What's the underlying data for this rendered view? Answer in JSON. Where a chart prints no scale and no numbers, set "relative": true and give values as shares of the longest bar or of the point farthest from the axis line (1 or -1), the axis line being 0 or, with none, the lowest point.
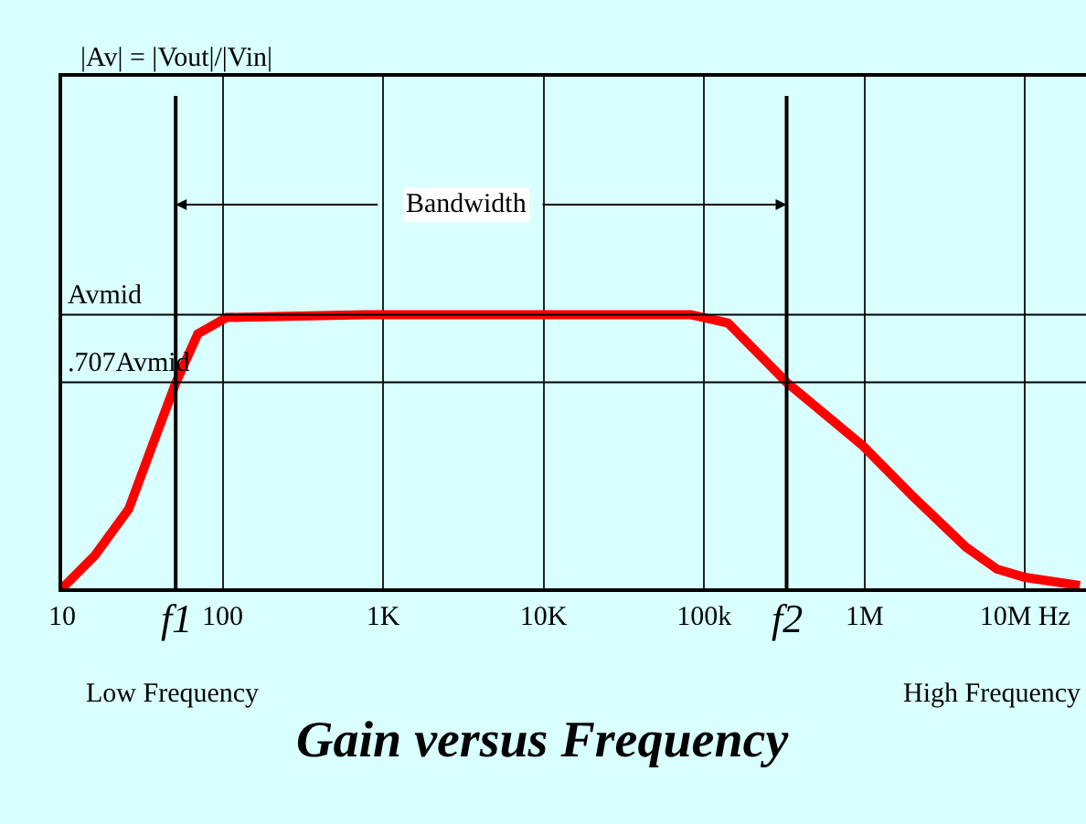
{
  "chart_data": {
    "type": "line",
    "title": "Gain versus Frequency",
    "relative": true,
    "log": "x",
    "x": [
      10,
      16,
      26,
      38,
      51,
      70,
      106,
      780,
      83000,
      141000,
      327000,
      980000,
      2050000,
      4300000,
      6700000,
      10000000,
      22000000
    ],
    "series": [
      {
        "color": "#ff0000",
        "values": [
          0,
          0.12,
          0.29,
          0.55,
          0.75,
          0.93,
          0.99,
          1.0,
          1.0,
          0.97,
          0.753,
          0.52,
          0.33,
          0.15,
          0.07,
          0.04,
          0.01
        ]
      }
    ],
    "xlim": [
      10,
      24000000
    ],
    "xticks": [
      10,
      100,
      {
        "value": 1000,
        "label": "1K"
      },
      {
        "value": 10000,
        "label": "10K"
      },
      {
        "value": 100000,
        "label": "100k"
      },
      {
        "value": 1000000,
        "label": "1M"
      },
      {
        "value": 10000000,
        "label": "10M Hz"
      }
    ],
    "grid": "x",
    "marker": "none",
    "line_style": "solid",
    "ref_lines": [
      {
        "axis": "y",
        "value": 1.0,
        "label": "Avmid"
      },
      {
        "axis": "y",
        "value": 0.753,
        "label": ".707Avmid"
      },
      {
        "axis": "x",
        "value": 51,
        "label": "f1"
      },
      {
        "axis": "x",
        "value": 327000,
        "label": "f2"
      }
    ],
    "annotations": [
      "|Av| = |Vout|/|Vin|",
      "Bandwidth",
      "Low Frequency",
      "High Frequency"
    ]
  }
}
